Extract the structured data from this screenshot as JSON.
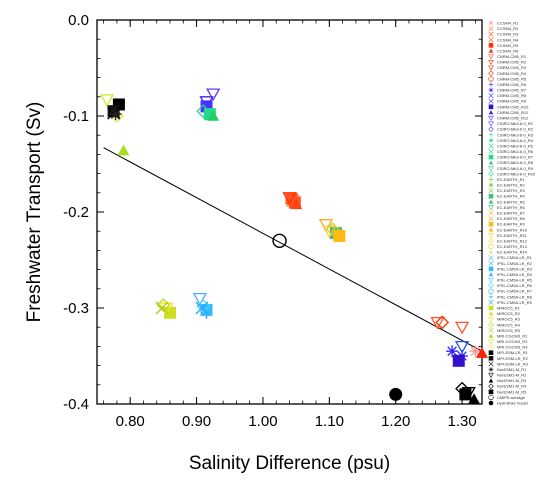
{
  "chart_data": {
    "type": "scatter",
    "title": "",
    "xlabel": "Salinity Difference (psu)",
    "ylabel": "Freshwater Transport (Sv)",
    "xlim": [
      0.75,
      1.33
    ],
    "ylim": [
      -0.4,
      0.0
    ],
    "x_ticks": [
      0.8,
      0.9,
      1.0,
      1.1,
      1.2,
      1.3
    ],
    "x_tick_labels": [
      "0.80",
      "0.90",
      "1.00",
      "1.10",
      "1.20",
      "1.30"
    ],
    "y_ticks": [
      0.0,
      -0.1,
      -0.2,
      -0.3,
      -0.4
    ],
    "y_tick_labels": [
      "0.0",
      "-0.1",
      "-0.2",
      "-0.3",
      "-0.4"
    ],
    "grid": false,
    "legend_position": "right-outside",
    "regression_line": {
      "x": [
        0.76,
        1.33
      ],
      "y": [
        -0.133,
        -0.345
      ],
      "color": "#000000"
    },
    "series": [
      {
        "marker": "star",
        "color": "#ff9999",
        "x": [
          1.32
        ],
        "y": [
          -0.345
        ]
      },
      {
        "marker": "x",
        "color": "#ff7a33",
        "x": [
          1.045
        ],
        "y": [
          -0.188
        ]
      },
      {
        "marker": "square",
        "color": "#ff5522",
        "x": [
          1.048,
          1.043
        ],
        "y": [
          -0.19,
          -0.186
        ]
      },
      {
        "marker": "tri-up",
        "color": "#ff4411",
        "x": [
          1.05
        ],
        "y": [
          -0.192
        ]
      },
      {
        "marker": "tri-down",
        "color": "#ff3300",
        "x": [
          1.04
        ],
        "y": [
          -0.185
        ]
      },
      {
        "marker": "tri-down",
        "color": "#ff5533",
        "x": [
          1.3,
          1.263
        ],
        "y": [
          -0.32,
          -0.315
        ]
      },
      {
        "marker": "diamond",
        "color": "#ff3300",
        "x": [
          1.27
        ],
        "y": [
          -0.315
        ]
      },
      {
        "marker": "tri-up",
        "color": "#ff2200",
        "x": [
          1.33
        ],
        "y": [
          -0.347
        ]
      },
      {
        "marker": "star",
        "color": "#3322ff",
        "x": [
          1.285,
          1.3
        ],
        "y": [
          -0.345,
          -0.35
        ]
      },
      {
        "marker": "tri-down",
        "color": "#2255ff",
        "x": [
          1.3
        ],
        "y": [
          -0.34
        ]
      },
      {
        "marker": "square",
        "color": "#3311cc",
        "x": [
          1.295
        ],
        "y": [
          -0.355
        ]
      },
      {
        "marker": "tri-down",
        "color": "#6633ff",
        "x": [
          0.925
        ],
        "y": [
          -0.077
        ]
      },
      {
        "marker": "tri-down",
        "color": "#4422ee",
        "x": [
          0.915
        ],
        "y": [
          -0.085
        ]
      },
      {
        "marker": "square",
        "color": "#4433ff",
        "x": [
          0.915
        ],
        "y": [
          -0.09
        ]
      },
      {
        "marker": "square",
        "color": "#22dd88",
        "x": [
          0.92
        ],
        "y": [
          -0.098
        ]
      },
      {
        "marker": "diamond",
        "color": "#33cc99",
        "x": [
          0.91
        ],
        "y": [
          -0.095
        ]
      },
      {
        "marker": "tri-up",
        "color": "#22cc66",
        "x": [
          0.925
        ],
        "y": [
          -0.1
        ]
      },
      {
        "marker": "tri-up",
        "color": "#66cc33",
        "x": [
          1.115
        ],
        "y": [
          -0.223
        ]
      },
      {
        "marker": "square",
        "color": "#44bb77",
        "x": [
          1.11
        ],
        "y": [
          -0.222
        ]
      },
      {
        "marker": "tri-down",
        "color": "#ffaa22",
        "x": [
          1.095
        ],
        "y": [
          -0.213
        ]
      },
      {
        "marker": "tri-down",
        "color": "#ffcc33",
        "x": [
          1.1
        ],
        "y": [
          -0.22
        ]
      },
      {
        "marker": "square",
        "color": "#ffbb11",
        "x": [
          1.115
        ],
        "y": [
          -0.225
        ]
      },
      {
        "marker": "diamond",
        "color": "#ddcc22",
        "x": [
          1.105
        ],
        "y": [
          -0.218
        ]
      },
      {
        "marker": "tri-down",
        "color": "#55aaff",
        "x": [
          0.905
        ],
        "y": [
          -0.29
        ]
      },
      {
        "marker": "cross",
        "color": "#3388ff",
        "x": [
          0.915
        ],
        "y": [
          -0.305
        ]
      },
      {
        "marker": "square",
        "color": "#33bbff",
        "x": [
          0.915
        ],
        "y": [
          -0.302
        ]
      },
      {
        "marker": "diamond",
        "color": "#55ccff",
        "x": [
          0.91
        ],
        "y": [
          -0.298
        ]
      },
      {
        "marker": "x",
        "color": "#22aaee",
        "x": [
          0.908
        ],
        "y": [
          -0.3
        ]
      },
      {
        "marker": "square",
        "color": "#ccdd22",
        "x": [
          0.86
        ],
        "y": [
          -0.305
        ]
      },
      {
        "marker": "tri-down",
        "color": "#ffdd33",
        "x": [
          0.855
        ],
        "y": [
          -0.3
        ]
      },
      {
        "marker": "diamond",
        "color": "#bbdd11",
        "x": [
          0.85
        ],
        "y": [
          -0.297
        ]
      },
      {
        "marker": "x",
        "color": "#aacc22",
        "x": [
          0.848
        ],
        "y": [
          -0.3
        ]
      },
      {
        "marker": "tri-up",
        "color": "#aadd22",
        "x": [
          0.79
        ],
        "y": [
          -0.136
        ]
      },
      {
        "marker": "tri-down",
        "color": "#ccee22",
        "x": [
          0.765
        ],
        "y": [
          -0.083
        ]
      },
      {
        "marker": "diamond",
        "color": "#ddee33",
        "x": [
          0.78
        ],
        "y": [
          -0.1
        ]
      },
      {
        "marker": "square",
        "color": "#000000",
        "x": [
          0.783
        ],
        "y": [
          -0.088
        ]
      },
      {
        "marker": "square",
        "color": "#111111",
        "x": [
          0.775
        ],
        "y": [
          -0.095
        ]
      },
      {
        "marker": "x",
        "color": "#000000",
        "x": [
          0.775
        ],
        "y": [
          -0.097
        ]
      },
      {
        "marker": "star",
        "color": "#222222",
        "x": [
          0.778
        ],
        "y": [
          -0.098
        ]
      },
      {
        "marker": "tri-down",
        "color": "#000000",
        "x": [
          1.31
        ],
        "y": [
          -0.388
        ]
      },
      {
        "marker": "tri-up",
        "color": "#000000",
        "x": [
          1.318
        ],
        "y": [
          -0.395
        ]
      },
      {
        "marker": "diamond",
        "color": "#000000",
        "x": [
          1.3
        ],
        "y": [
          -0.384
        ]
      },
      {
        "marker": "square",
        "color": "#000000",
        "x": [
          1.305
        ],
        "y": [
          -0.39
        ]
      },
      {
        "marker": "circle-open",
        "color": "#000000",
        "x": [
          1.025
        ],
        "y": [
          -0.23
        ]
      },
      {
        "marker": "circle-filled",
        "color": "#000000",
        "x": [
          1.2
        ],
        "y": [
          -0.39
        ]
      }
    ],
    "legend": [
      {
        "label": "CCSM4_R1",
        "color": "#ff9999",
        "marker": "star"
      },
      {
        "label": "CCSM4_R2",
        "color": "#ff7a33",
        "marker": "x"
      },
      {
        "label": "CCSM4_R3",
        "color": "#ff5522",
        "marker": "x"
      },
      {
        "label": "CCSM4_R4",
        "color": "#ff4411",
        "marker": "x"
      },
      {
        "label": "CCSM4_R5",
        "color": "#ff3300",
        "marker": "square"
      },
      {
        "label": "CCSM4_R6",
        "color": "#ff3300",
        "marker": "tri-up"
      },
      {
        "label": "CNRM-CM5_R1",
        "color": "#ff5533",
        "marker": "tri-down"
      },
      {
        "label": "CNRM-CM5_R2",
        "color": "#ff3300",
        "marker": "tri-down"
      },
      {
        "label": "CNRM-CM5_R3",
        "color": "#ff2200",
        "marker": "tri-down"
      },
      {
        "label": "CNRM-CM5_R4",
        "color": "#ff2200",
        "marker": "diamond"
      },
      {
        "label": "CNRM-CM5_R5",
        "color": "#ff2200",
        "marker": "circle-open"
      },
      {
        "label": "CNRM-CM5_R6",
        "color": "#3322ff",
        "marker": "cross"
      },
      {
        "label": "CNRM-CM5_R7",
        "color": "#3322ff",
        "marker": "star"
      },
      {
        "label": "CNRM-CM5_R8",
        "color": "#3322ff",
        "marker": "x"
      },
      {
        "label": "CNRM-CM5_R9",
        "color": "#3322ff",
        "marker": "x"
      },
      {
        "label": "CNRM-CM5_R10",
        "color": "#3311cc",
        "marker": "square"
      },
      {
        "label": "CNRM-CM5_R11",
        "color": "#4422ee",
        "marker": "tri-up"
      },
      {
        "label": "CNRM-CM5_R12",
        "color": "#6633ff",
        "marker": "tri-down"
      },
      {
        "label": "CSIRO-Mk3-6-0_R1",
        "color": "#4433ff",
        "marker": "tri-down"
      },
      {
        "label": "CSIRO-Mk3-6-0_R2",
        "color": "#4433ff",
        "marker": "diamond"
      },
      {
        "label": "CSIRO-Mk3-6-0_R3",
        "color": "#22dd88",
        "marker": "cross"
      },
      {
        "label": "CSIRO-Mk3-6-0_R4",
        "color": "#22dd88",
        "marker": "star"
      },
      {
        "label": "CSIRO-Mk3-6-0_R5",
        "color": "#22dd88",
        "marker": "x"
      },
      {
        "label": "CSIRO-Mk3-6-0_R6",
        "color": "#22dd88",
        "marker": "x"
      },
      {
        "label": "CSIRO-Mk3-6-0_R7",
        "color": "#22dd88",
        "marker": "square"
      },
      {
        "label": "CSIRO-Mk3-6-0_R8",
        "color": "#33cc99",
        "marker": "tri-up"
      },
      {
        "label": "CSIRO-Mk3-6-0_R9",
        "color": "#33cc99",
        "marker": "tri-down"
      },
      {
        "label": "CSIRO-Mk3-6-0_R10",
        "color": "#33cc99",
        "marker": "diamond"
      },
      {
        "label": "EC-EARTH_R1",
        "color": "#66cc33",
        "marker": "cross"
      },
      {
        "label": "EC-EARTH_R2",
        "color": "#66cc33",
        "marker": "star"
      },
      {
        "label": "EC-EARTH_R3",
        "color": "#66cc33",
        "marker": "x"
      },
      {
        "label": "EC-EARTH_R4",
        "color": "#44bb77",
        "marker": "square"
      },
      {
        "label": "EC-EARTH_R5",
        "color": "#44bb77",
        "marker": "tri-up"
      },
      {
        "label": "EC-EARTH_R6",
        "color": "#44bb77",
        "marker": "tri-down"
      },
      {
        "label": "EC-EARTH_R7",
        "color": "#ffaa22",
        "marker": "x"
      },
      {
        "label": "EC-EARTH_R8",
        "color": "#ffaa22",
        "marker": "x"
      },
      {
        "label": "EC-EARTH_R9",
        "color": "#ffbb11",
        "marker": "square"
      },
      {
        "label": "EC-EARTH_R10",
        "color": "#ffbb11",
        "marker": "tri-up"
      },
      {
        "label": "EC-EARTH_R11",
        "color": "#ffcc33",
        "marker": "tri-down"
      },
      {
        "label": "EC-EARTH_R12",
        "color": "#ffcc33",
        "marker": "diamond"
      },
      {
        "label": "EC-EARTH_R13",
        "color": "#ddcc22",
        "marker": "circle-open"
      },
      {
        "label": "EC-EARTH_R14",
        "color": "#ddcc22",
        "marker": "cross"
      },
      {
        "label": "IPSL-CM5A-LR_R1",
        "color": "#55aaff",
        "marker": "x"
      },
      {
        "label": "IPSL-CM5A-LR_R2",
        "color": "#55aaff",
        "marker": "x"
      },
      {
        "label": "IPSL-CM5A-LR_R3",
        "color": "#33bbff",
        "marker": "square"
      },
      {
        "label": "IPSL-CM5A-LR_R4",
        "color": "#33bbff",
        "marker": "tri-up"
      },
      {
        "label": "IPSL-CM5A-LR_R5",
        "color": "#55ccff",
        "marker": "tri-down"
      },
      {
        "label": "IPSL-CM5A-LR_R6",
        "color": "#55ccff",
        "marker": "diamond"
      },
      {
        "label": "IPSL-CM5A-LR_R7",
        "color": "#22aaee",
        "marker": "circle-open"
      },
      {
        "label": "IPSL-CM5A-LR_R8",
        "color": "#22aaee",
        "marker": "cross"
      },
      {
        "label": "IPSL-CM5A-LR_R9",
        "color": "#22aaee",
        "marker": "x"
      },
      {
        "label": "MIROC5_R1",
        "color": "#ccdd22",
        "marker": "square"
      },
      {
        "label": "MIROC5_R2",
        "color": "#ccdd22",
        "marker": "tri-up"
      },
      {
        "label": "MIROC5_R3",
        "color": "#ffdd33",
        "marker": "tri-down"
      },
      {
        "label": "MIROC5_R4",
        "color": "#bbdd11",
        "marker": "diamond"
      },
      {
        "label": "MIROC5_R5",
        "color": "#aacc22",
        "marker": "x"
      },
      {
        "label": "MRI-CGCM3_R1",
        "color": "#aadd22",
        "marker": "tri-up"
      },
      {
        "label": "MRI-CGCM3_R2",
        "color": "#ccee22",
        "marker": "tri-down"
      },
      {
        "label": "MRI-CGCM3_R3",
        "color": "#ddee33",
        "marker": "diamond"
      },
      {
        "label": "MPI-ESM-LR_R1",
        "color": "#000000",
        "marker": "square"
      },
      {
        "label": "MPI-ESM-LR_R2",
        "color": "#111111",
        "marker": "square"
      },
      {
        "label": "MPI-ESM-LR_R3",
        "color": "#000000",
        "marker": "x"
      },
      {
        "label": "NorESM1-M_R1",
        "color": "#222222",
        "marker": "star"
      },
      {
        "label": "NorESM1-M_R2",
        "color": "#000000",
        "marker": "tri-down"
      },
      {
        "label": "NorESM1-M_R3",
        "color": "#000000",
        "marker": "tri-up"
      },
      {
        "label": "NorESM1-M_R4",
        "color": "#000000",
        "marker": "diamond"
      },
      {
        "label": "NorESM1-M_R5",
        "color": "#000000",
        "marker": "square"
      },
      {
        "label": "CMIP5 average",
        "color": "#000000",
        "marker": "circle-open"
      },
      {
        "label": "Hydrolinks model",
        "color": "#000000",
        "marker": "circle-filled"
      }
    ]
  }
}
